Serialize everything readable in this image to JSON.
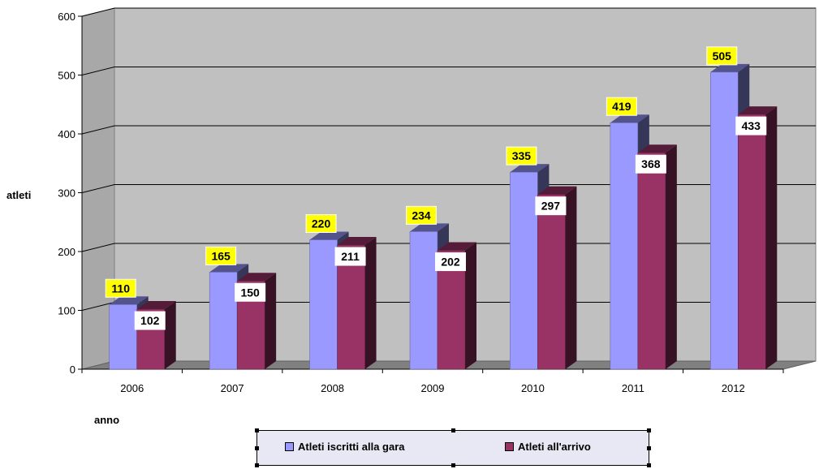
{
  "chart_data": {
    "type": "bar",
    "categories": [
      "2006",
      "2007",
      "2008",
      "2009",
      "2010",
      "2011",
      "2012"
    ],
    "series": [
      {
        "name": "Atleti iscritti alla gara",
        "values": [
          110,
          165,
          220,
          234,
          335,
          419,
          505
        ],
        "color": "#9999ff",
        "label_bg": "#ffff00"
      },
      {
        "name": "Atleti all'arrivo",
        "values": [
          102,
          150,
          211,
          202,
          297,
          368,
          433
        ],
        "color": "#993366",
        "label_bg": "#ffffff"
      }
    ],
    "xlabel": "anno",
    "ylabel": "atleti",
    "ylim": [
      0,
      600
    ],
    "yticks": [
      0,
      100,
      200,
      300,
      400,
      500,
      600
    ],
    "grid": true,
    "legend_position": "bottom",
    "style": "3d-clustered-column",
    "colors": {
      "wall": "#c0c0c0",
      "floor": "#808080",
      "gridline": "#000000"
    }
  }
}
